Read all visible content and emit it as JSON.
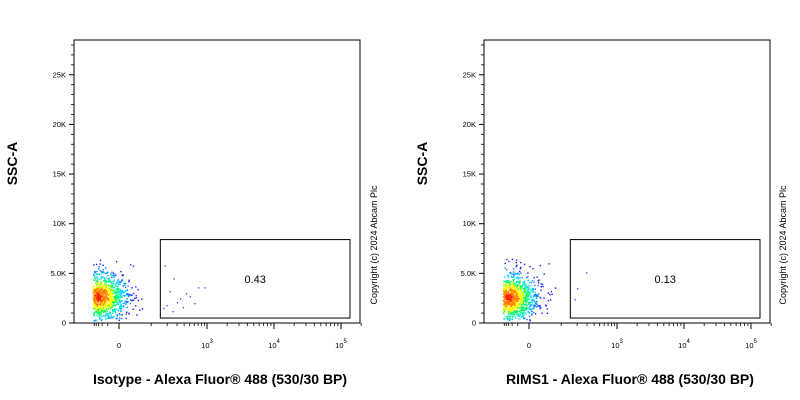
{
  "chart_data": [
    {
      "type": "scatter",
      "title": "",
      "xlabel": "Isotype - Alexa Fluor® 488 (530/30 BP)",
      "ylabel": "SSC-A",
      "x_scale": "biexponential",
      "x_ticks": [
        {
          "value": 0,
          "base": "0",
          "exp": ""
        },
        {
          "value": 1000,
          "base": "10",
          "exp": "3"
        },
        {
          "value": 10000,
          "base": "10",
          "exp": "4"
        },
        {
          "value": 100000,
          "base": "10",
          "exp": "5"
        }
      ],
      "y_ticks": [
        {
          "value": 0,
          "label": "0"
        },
        {
          "value": 5000,
          "label": "5.0K"
        },
        {
          "value": 10000,
          "label": "10K"
        },
        {
          "value": 15000,
          "label": "15K"
        },
        {
          "value": 20000,
          "label": "20K"
        },
        {
          "value": 25000,
          "label": "25K"
        }
      ],
      "ylim": [
        0,
        28500
      ],
      "gate": {
        "x_range": [
          150,
          250000
        ],
        "y_range": [
          500,
          8400
        ],
        "percent": "0.43"
      },
      "population": {
        "x_center": -300,
        "y_center": 2700,
        "x_extent": [
          -600,
          100
        ],
        "y_extent": [
          300,
          6500
        ],
        "events_in_gate": [
          {
            "x": 170,
            "y": 1500
          },
          {
            "x": 180,
            "y": 5800
          },
          {
            "x": 195,
            "y": 1800
          },
          {
            "x": 220,
            "y": 3200
          },
          {
            "x": 260,
            "y": 4500
          },
          {
            "x": 300,
            "y": 2100
          },
          {
            "x": 340,
            "y": 2500
          },
          {
            "x": 380,
            "y": 1600
          },
          {
            "x": 430,
            "y": 3000
          },
          {
            "x": 500,
            "y": 2700
          },
          {
            "x": 700,
            "y": 3600
          },
          {
            "x": 900,
            "y": 3600
          },
          {
            "x": 600,
            "y": 2000
          },
          {
            "x": 250,
            "y": 1200
          }
        ]
      },
      "copyright": "Copyright (c) 2024 Abcam Plc"
    },
    {
      "type": "scatter",
      "title": "",
      "xlabel": "RIMS1 - Alexa Fluor® 488 (530/30 BP)",
      "ylabel": "SSC-A",
      "x_scale": "biexponential",
      "x_ticks": [
        {
          "value": 0,
          "base": "0",
          "exp": ""
        },
        {
          "value": 1000,
          "base": "10",
          "exp": "3"
        },
        {
          "value": 10000,
          "base": "10",
          "exp": "4"
        },
        {
          "value": 100000,
          "base": "10",
          "exp": "5"
        }
      ],
      "y_ticks": [
        {
          "value": 0,
          "label": "0"
        },
        {
          "value": 5000,
          "label": "5.0K"
        },
        {
          "value": 10000,
          "label": "10K"
        },
        {
          "value": 15000,
          "label": "15K"
        },
        {
          "value": 20000,
          "label": "20K"
        },
        {
          "value": 25000,
          "label": "25K"
        }
      ],
      "ylim": [
        0,
        28500
      ],
      "gate": {
        "x_range": [
          150,
          250000
        ],
        "y_range": [
          500,
          8400
        ],
        "percent": "0.13"
      },
      "population": {
        "x_center": -300,
        "y_center": 2600,
        "x_extent": [
          -600,
          100
        ],
        "y_extent": [
          300,
          6500
        ],
        "events_in_gate": [
          {
            "x": 180,
            "y": 2400
          },
          {
            "x": 290,
            "y": 5100
          },
          {
            "x": 200,
            "y": 3500
          }
        ]
      },
      "copyright": "Copyright (c) 2024 Abcam Plc"
    }
  ]
}
